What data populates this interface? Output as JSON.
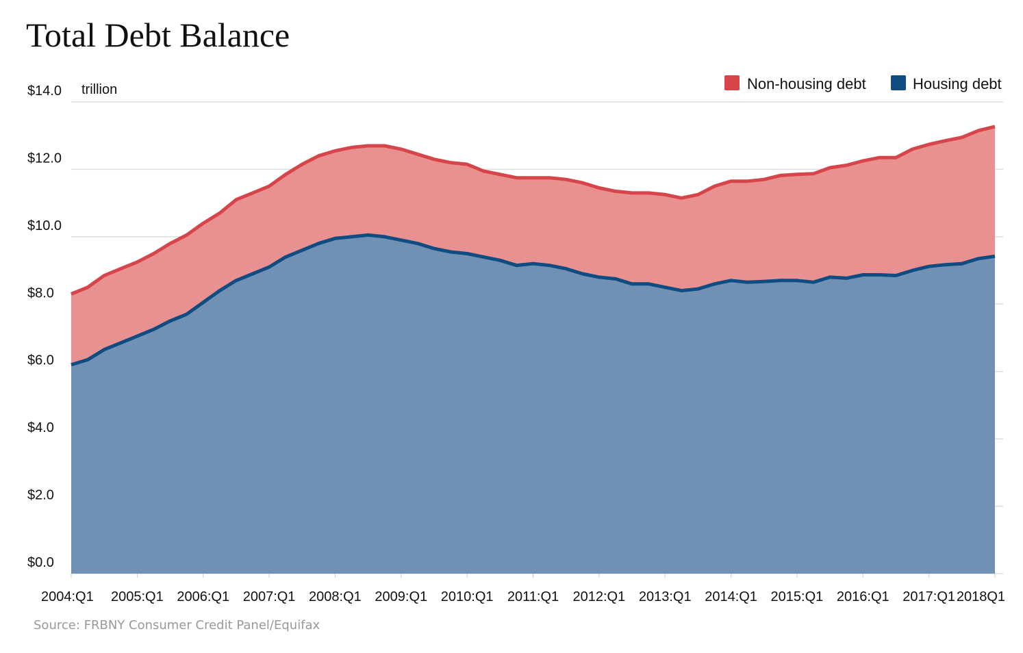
{
  "title": "Total Debt Balance",
  "source": "Source: FRBNY Consumer Credit Panel/Equifax",
  "colors": {
    "nonhousing_line": "#d6454a",
    "nonhousing_fill": "#e89190",
    "housing_line": "#0f4c81",
    "housing_fill": "#7090b4",
    "grid": "#dddddd"
  },
  "chart_data": {
    "type": "area",
    "stacked": true,
    "title": "Total Debt Balance",
    "ylabel": "trillion",
    "ylim": [
      0,
      14
    ],
    "yticks": [
      0,
      2,
      4,
      6,
      8,
      10,
      12,
      14
    ],
    "ytick_labels": [
      "$0.0",
      "$2.0",
      "$4.0",
      "$6.0",
      "$8.0",
      "$10.0",
      "$12.0",
      "$14.0"
    ],
    "xtick_labels": [
      "2004:Q1",
      "2005:Q1",
      "2006:Q1",
      "2007:Q1",
      "2008:Q1",
      "2009:Q1",
      "2010:Q1",
      "2011:Q1",
      "2012:Q1",
      "2013:Q1",
      "2014:Q1",
      "2015:Q1",
      "2016:Q1",
      "2017:Q1",
      "2018Q1"
    ],
    "legend_position": "top-right",
    "grid": true,
    "x": [
      "2004:Q1",
      "2004:Q2",
      "2004:Q3",
      "2004:Q4",
      "2005:Q1",
      "2005:Q2",
      "2005:Q3",
      "2005:Q4",
      "2006:Q1",
      "2006:Q2",
      "2006:Q3",
      "2006:Q4",
      "2007:Q1",
      "2007:Q2",
      "2007:Q3",
      "2007:Q4",
      "2008:Q1",
      "2008:Q2",
      "2008:Q3",
      "2008:Q4",
      "2009:Q1",
      "2009:Q2",
      "2009:Q3",
      "2009:Q4",
      "2010:Q1",
      "2010:Q2",
      "2010:Q3",
      "2010:Q4",
      "2011:Q1",
      "2011:Q2",
      "2011:Q3",
      "2011:Q4",
      "2012:Q1",
      "2012:Q2",
      "2012:Q3",
      "2012:Q4",
      "2013:Q1",
      "2013:Q2",
      "2013:Q3",
      "2013:Q4",
      "2014:Q1",
      "2014:Q2",
      "2014:Q3",
      "2014:Q4",
      "2015:Q1",
      "2015:Q2",
      "2015:Q3",
      "2015:Q4",
      "2016:Q1",
      "2016:Q2",
      "2016:Q3",
      "2016:Q4",
      "2017:Q1",
      "2017:Q2",
      "2017:Q3",
      "2017:Q4",
      "2018Q1"
    ],
    "series": [
      {
        "name": "Housing debt",
        "values": [
          6.2,
          6.35,
          6.65,
          6.85,
          7.05,
          7.25,
          7.5,
          7.7,
          8.05,
          8.4,
          8.7,
          8.9,
          9.1,
          9.4,
          9.6,
          9.8,
          9.95,
          10.0,
          10.05,
          10.0,
          9.9,
          9.8,
          9.65,
          9.55,
          9.5,
          9.4,
          9.3,
          9.15,
          9.2,
          9.15,
          9.05,
          8.9,
          8.8,
          8.75,
          8.6,
          8.6,
          8.5,
          8.4,
          8.45,
          8.6,
          8.7,
          8.65,
          8.67,
          8.7,
          8.7,
          8.65,
          8.8,
          8.77,
          8.87,
          8.87,
          8.85,
          9.0,
          9.12,
          9.17,
          9.2,
          9.35,
          9.42
        ]
      },
      {
        "name": "Non-housing debt",
        "values": [
          2.1,
          2.15,
          2.2,
          2.2,
          2.2,
          2.25,
          2.3,
          2.35,
          2.35,
          2.3,
          2.4,
          2.4,
          2.4,
          2.45,
          2.55,
          2.6,
          2.6,
          2.65,
          2.65,
          2.7,
          2.7,
          2.65,
          2.65,
          2.65,
          2.65,
          2.55,
          2.55,
          2.6,
          2.55,
          2.6,
          2.65,
          2.7,
          2.65,
          2.6,
          2.7,
          2.7,
          2.75,
          2.75,
          2.8,
          2.9,
          2.95,
          3.0,
          3.03,
          3.12,
          3.15,
          3.22,
          3.25,
          3.35,
          3.38,
          3.48,
          3.5,
          3.6,
          3.62,
          3.68,
          3.75,
          3.8,
          3.85
        ]
      }
    ]
  }
}
